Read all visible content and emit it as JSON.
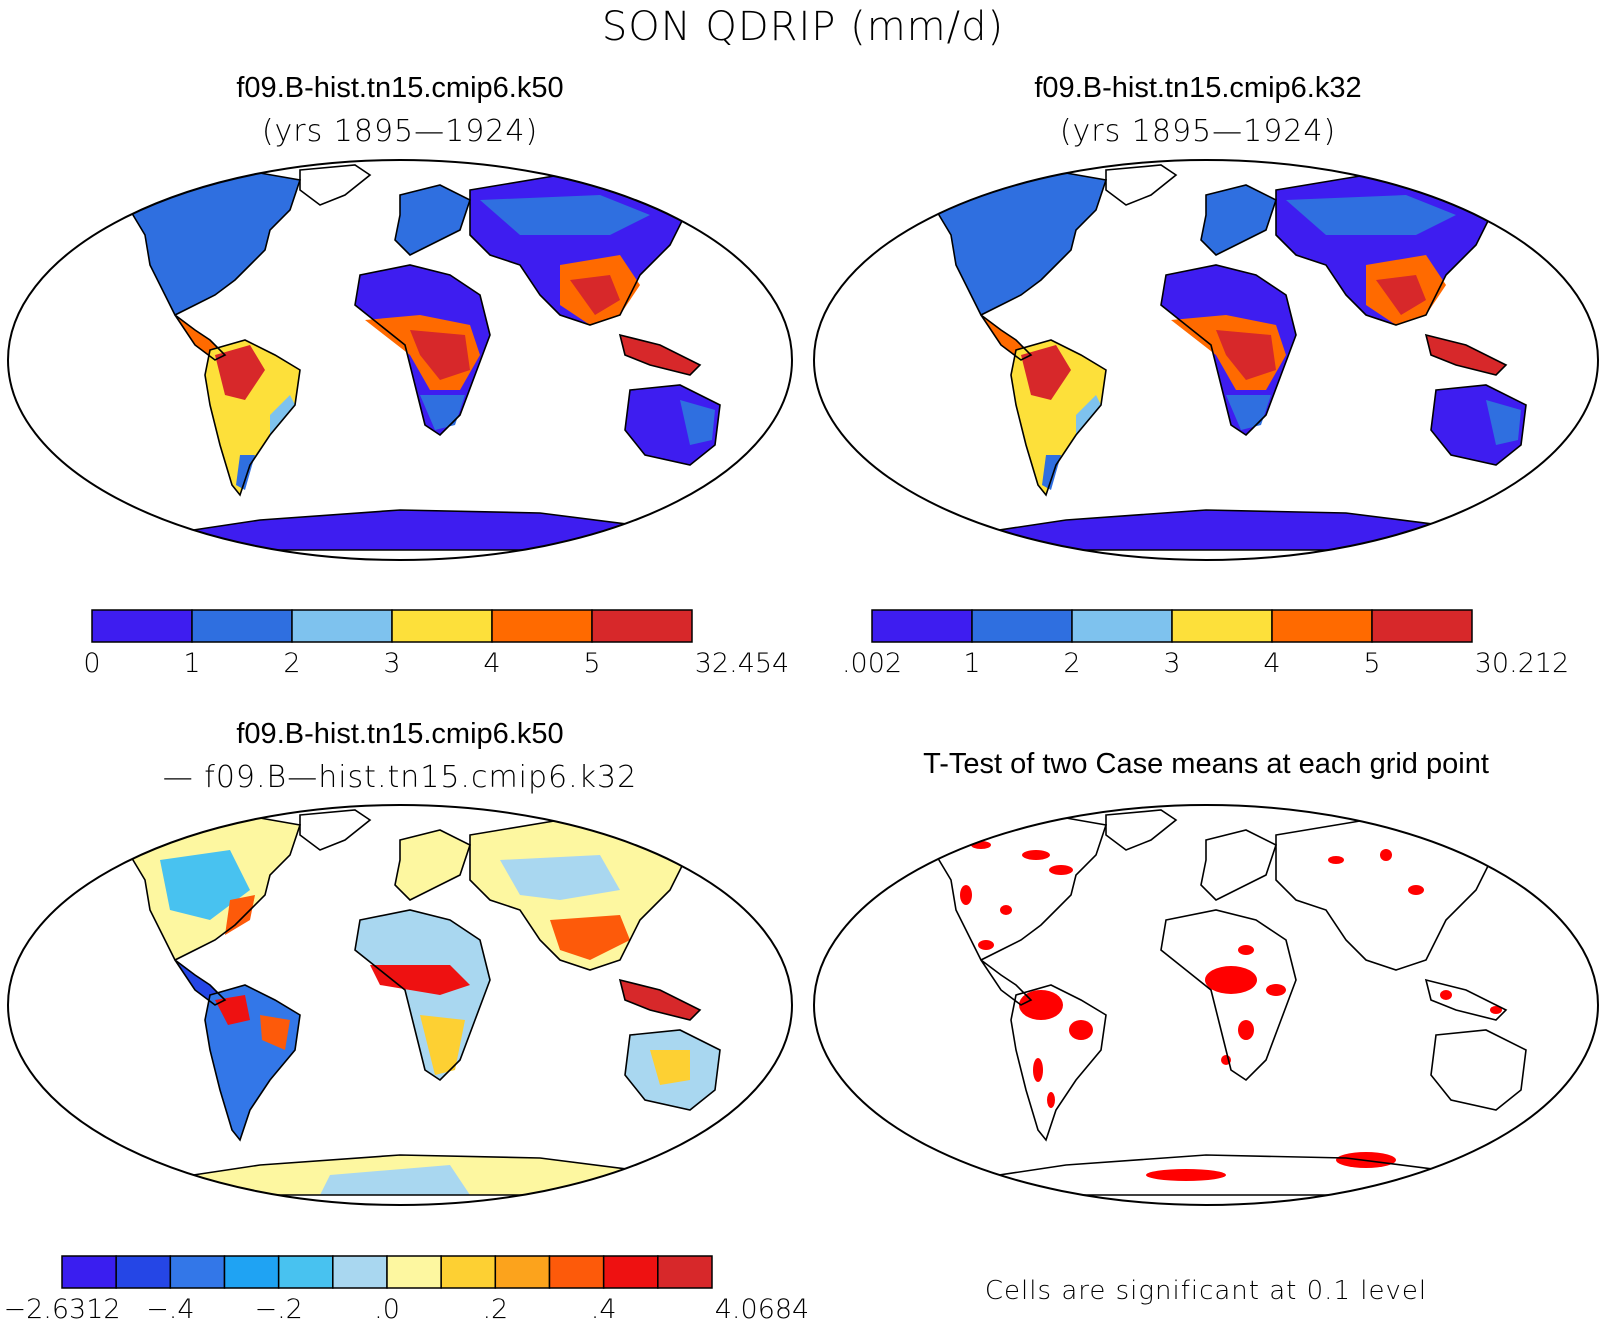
{
  "figure": {
    "title": "SON QDRIP (mm/d)"
  },
  "panels": [
    {
      "title": "f09.B-hist.tn15.cmip6.k50",
      "subtitle": "(yrs 1895—1924)",
      "colorbar": {
        "colors": [
          "#3e1df0",
          "#2f6fe0",
          "#7ec2ee",
          "#fde03a",
          "#ff6a00",
          "#d7282a"
        ],
        "labels": [
          "0",
          "1",
          "2",
          "3",
          "4",
          "5",
          "32.454"
        ]
      }
    },
    {
      "title": "f09.B-hist.tn15.cmip6.k32",
      "subtitle": "(yrs 1895—1924)",
      "colorbar": {
        "colors": [
          "#3e1df0",
          "#2f6fe0",
          "#7ec2ee",
          "#fde03a",
          "#ff6a00",
          "#d7282a"
        ],
        "labels": [
          ".002",
          "1",
          "2",
          "3",
          "4",
          "5",
          "30.212"
        ]
      }
    },
    {
      "title": "f09.B-hist.tn15.cmip6.k50",
      "subtitle": "— f09.B—hist.tn15.cmip6.k32",
      "colorbar": {
        "colors": [
          "#3a1ef0",
          "#2546e6",
          "#3377e8",
          "#1fa3f3",
          "#48c2f0",
          "#a9d7f0",
          "#fdf7a0",
          "#fdd033",
          "#fca31c",
          "#fd5a0a",
          "#ee1111",
          "#d7282a"
        ],
        "labels": [
          "−2.6312",
          "−.4",
          "−.2",
          ".0",
          ".2",
          ".4",
          "4.0684"
        ]
      }
    },
    {
      "title": "T-Test of two Case means at each grid point",
      "note": "Cells are significant at 0.1 level",
      "significant_color": "#ff0000"
    }
  ]
}
